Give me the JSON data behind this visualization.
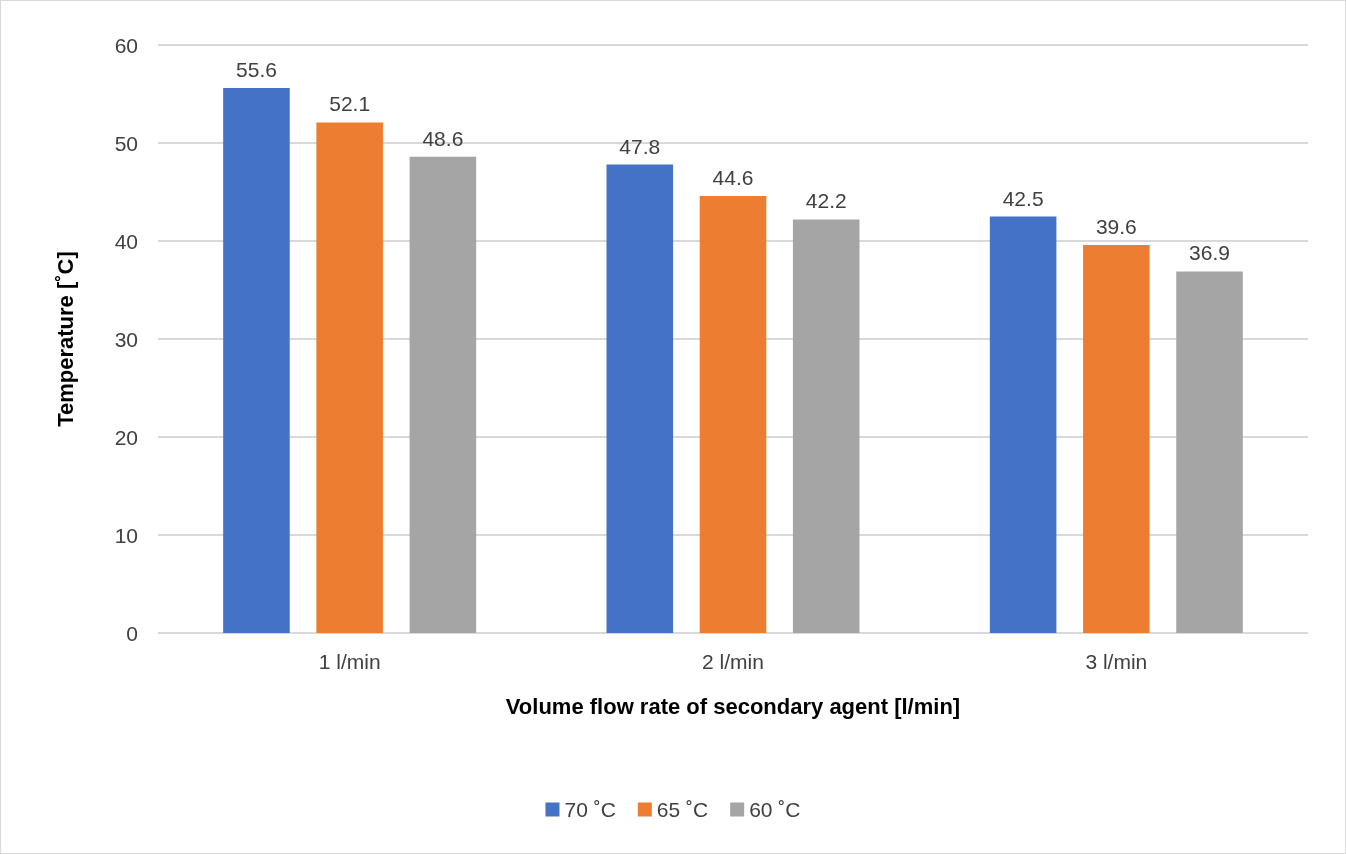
{
  "chart_data": {
    "type": "bar",
    "xlabel": "Volume flow rate of secondary agent [l/min]",
    "ylabel": "Temperature [˚C]",
    "categories": [
      "1 l/min",
      "2 l/min",
      "3 l/min"
    ],
    "series": [
      {
        "name": "70 ˚C",
        "color": "#4472c4",
        "values": [
          55.6,
          47.8,
          42.5
        ]
      },
      {
        "name": "65 ˚C",
        "color": "#ed7d31",
        "values": [
          52.1,
          44.6,
          39.6
        ]
      },
      {
        "name": "60 ˚C",
        "color": "#a5a5a5",
        "values": [
          48.6,
          42.2,
          36.9
        ]
      }
    ],
    "ylim": [
      0,
      60
    ],
    "yticks": [
      0,
      10,
      20,
      30,
      40,
      50,
      60
    ],
    "grid": "y",
    "legend": "bottom",
    "data_labels": true
  }
}
